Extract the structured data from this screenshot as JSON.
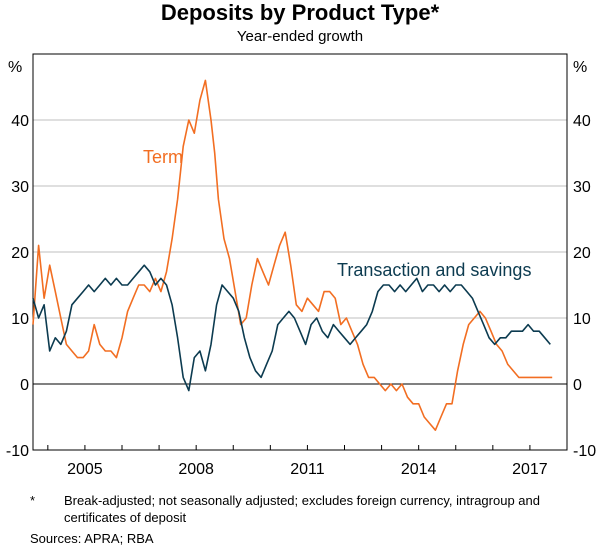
{
  "title": "Deposits by Product Type*",
  "subtitle": "Year-ended growth",
  "footnote": {
    "marker": "*",
    "text": "Break-adjusted; not seasonally adjusted; excludes foreign currency, intragroup and certificates of deposit"
  },
  "sources": "Sources: APRA; RBA",
  "colors": {
    "term": "#f26e22",
    "transaction": "#0c3b50",
    "grid": "#bfbfbf"
  },
  "chart_data": {
    "type": "line",
    "title": "Deposits by Product Type*",
    "subtitle": "Year-ended growth",
    "ylabel_left": "%",
    "ylabel_right": "%",
    "ylim": [
      -10,
      50
    ],
    "yticks": [
      -10,
      0,
      10,
      20,
      30,
      40
    ],
    "xlim": [
      2003.6,
      2018.0
    ],
    "xticks": [
      2005,
      2008,
      2011,
      2014,
      2017
    ],
    "xtick_labels": [
      "2005",
      "2008",
      "2011",
      "2014",
      "2017"
    ],
    "grid": true,
    "series": [
      {
        "name": "Term",
        "x": [
          2003.6,
          2003.75,
          2003.9,
          2004.05,
          2004.2,
          2004.35,
          2004.5,
          2004.65,
          2004.8,
          2004.95,
          2005.1,
          2005.25,
          2005.4,
          2005.55,
          2005.7,
          2005.85,
          2006.0,
          2006.15,
          2006.3,
          2006.45,
          2006.6,
          2006.75,
          2006.9,
          2007.05,
          2007.2,
          2007.35,
          2007.5,
          2007.65,
          2007.8,
          2007.95,
          2008.1,
          2008.25,
          2008.4,
          2008.5,
          2008.6,
          2008.75,
          2008.9,
          2009.05,
          2009.2,
          2009.35,
          2009.5,
          2009.65,
          2009.8,
          2009.95,
          2010.1,
          2010.25,
          2010.4,
          2010.55,
          2010.7,
          2010.85,
          2011.0,
          2011.15,
          2011.3,
          2011.45,
          2011.6,
          2011.75,
          2011.9,
          2012.05,
          2012.2,
          2012.35,
          2012.5,
          2012.65,
          2012.8,
          2012.95,
          2013.1,
          2013.25,
          2013.4,
          2013.55,
          2013.7,
          2013.85,
          2014.0,
          2014.15,
          2014.3,
          2014.45,
          2014.6,
          2014.75,
          2014.9,
          2015.05,
          2015.2,
          2015.35,
          2015.5,
          2015.65,
          2015.8,
          2015.95,
          2016.1,
          2016.25,
          2016.4,
          2016.55,
          2016.7,
          2016.85,
          2017.0,
          2017.15,
          2017.3,
          2017.45,
          2017.6
        ],
        "values": [
          9,
          21,
          13,
          18,
          14,
          10,
          6,
          5,
          4,
          4,
          5,
          9,
          6,
          5,
          5,
          4,
          7,
          11,
          13,
          15,
          15,
          14,
          16,
          14,
          17,
          22,
          28,
          36,
          40,
          38,
          43,
          46,
          40,
          35,
          28,
          22,
          19,
          14,
          9,
          10,
          15,
          19,
          17,
          15,
          18,
          21,
          23,
          18,
          12,
          11,
          13,
          12,
          11,
          14,
          14,
          13,
          9,
          10,
          8,
          6,
          3,
          1,
          1,
          0,
          -1,
          0,
          -1,
          0,
          -2,
          -3,
          -3,
          -5,
          -6,
          -7,
          -5,
          -3,
          -3,
          2,
          6,
          9,
          10,
          11,
          10,
          8,
          6,
          5,
          3,
          2,
          1,
          1,
          1,
          1,
          1,
          1,
          1
        ]
      },
      {
        "name": "Transaction and savings",
        "x": [
          2003.6,
          2003.75,
          2003.9,
          2004.05,
          2004.2,
          2004.35,
          2004.5,
          2004.65,
          2004.8,
          2004.95,
          2005.1,
          2005.25,
          2005.4,
          2005.55,
          2005.7,
          2005.85,
          2006.0,
          2006.15,
          2006.3,
          2006.45,
          2006.6,
          2006.75,
          2006.9,
          2007.05,
          2007.2,
          2007.35,
          2007.5,
          2007.65,
          2007.8,
          2007.95,
          2008.1,
          2008.25,
          2008.4,
          2008.55,
          2008.7,
          2008.85,
          2009.0,
          2009.15,
          2009.3,
          2009.45,
          2009.6,
          2009.75,
          2009.9,
          2010.05,
          2010.2,
          2010.35,
          2010.5,
          2010.65,
          2010.8,
          2010.95,
          2011.1,
          2011.25,
          2011.4,
          2011.55,
          2011.7,
          2011.85,
          2012.0,
          2012.15,
          2012.3,
          2012.45,
          2012.6,
          2012.75,
          2012.9,
          2013.05,
          2013.2,
          2013.35,
          2013.5,
          2013.65,
          2013.8,
          2013.95,
          2014.1,
          2014.25,
          2014.4,
          2014.55,
          2014.7,
          2014.85,
          2015.0,
          2015.15,
          2015.3,
          2015.45,
          2015.6,
          2015.75,
          2015.9,
          2016.05,
          2016.2,
          2016.35,
          2016.5,
          2016.65,
          2016.8,
          2016.95,
          2017.1,
          2017.25,
          2017.4,
          2017.55
        ],
        "values": [
          13,
          10,
          12,
          5,
          7,
          6,
          8,
          12,
          13,
          14,
          15,
          14,
          15,
          16,
          15,
          16,
          15,
          15,
          16,
          17,
          18,
          17,
          15,
          16,
          15,
          12,
          7,
          1,
          -1,
          4,
          5,
          2,
          6,
          12,
          15,
          14,
          13,
          11,
          7,
          4,
          2,
          1,
          3,
          5,
          9,
          10,
          11,
          10,
          8,
          6,
          9,
          10,
          8,
          7,
          9,
          8,
          7,
          6,
          7,
          8,
          9,
          11,
          14,
          15,
          15,
          14,
          15,
          14,
          15,
          16,
          14,
          15,
          15,
          14,
          15,
          14,
          15,
          15,
          14,
          13,
          11,
          9,
          7,
          6,
          7,
          7,
          8,
          8,
          8,
          9,
          8,
          8,
          7,
          6
        ]
      }
    ],
    "annotations": [
      {
        "text": "Term",
        "series": "Term"
      },
      {
        "text": "Transaction and savings",
        "series": "Transaction and savings"
      }
    ]
  }
}
